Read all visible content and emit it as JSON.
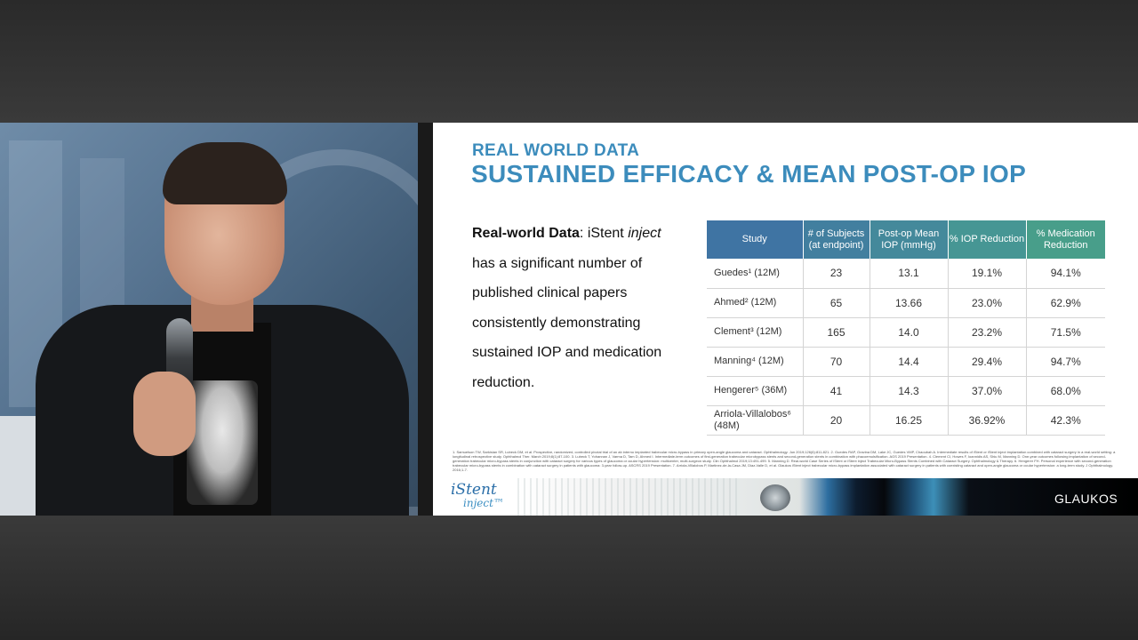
{
  "slide": {
    "kicker": "REAL WORLD DATA",
    "title": "SUSTAINED EFFICACY & MEAN POST-OP IOP",
    "body": {
      "bold_lead": "Real-world Data",
      "after_lead": ": iStent",
      "italic_word": "inject",
      "rest": " has a significant number of published clinical papers consistently demonstrating sustained IOP and medication reduction."
    },
    "table": {
      "headers": [
        "Study",
        "# of Subjects (at endpoint)",
        "Post-op Mean IOP (mmHg)",
        "% IOP Reduction",
        "% Medication Reduction"
      ],
      "rows": [
        [
          "Guedes¹ (12M)",
          "23",
          "13.1",
          "19.1%",
          "94.1%"
        ],
        [
          "Ahmed² (12M)",
          "65",
          "13.66",
          "23.0%",
          "62.9%"
        ],
        [
          "Clement³ (12M)",
          "165",
          "14.0",
          "23.2%",
          "71.5%"
        ],
        [
          "Manning⁴ (12M)",
          "70",
          "14.4",
          "29.4%",
          "94.7%"
        ],
        [
          "Hengerer⁵ (36M)",
          "41",
          "14.3",
          "37.0%",
          "68.0%"
        ],
        [
          "Arriola-Villalobos⁶ (48M)",
          "20",
          "16.25",
          "36.92%",
          "42.3%"
        ]
      ]
    },
    "references": "1. Samuelson TW, Sarkisian SR, Lubeck DM, et al. Prospective, randomized, controlled pivotal trial of an ab interno implanted trabecular micro-bypass in primary open-angle glaucoma and cataract. Ophthalmology. Jun 2019;126(6):811-821. 2. Guedes RAP, Gravina DM, Lake JC, Guedes VMP, Chaoubah A. Intermediate results of iStent or iStent inject implantation combined with cataract surgery in a real-world setting: a longitudinal retrospective study. Ophthalmol Ther. March 2019;8(1):87-100. 3. Lubeck T, Yohannan J, Varma D, Tam D, Ahmed I. Intermediate-term outcomes of first-generation trabecular microbypass stents and second-generation stents in combination with phacoemulsification. AGS 2019 Presentation. 4. Clement CI, Howes F, Ioannidis AS, Shiu M, Manning D. One-year outcomes following implantation of second-generation trabecular micro-bypass stents in conjunction with cataract surgery for various types of glaucoma or ocular hypertension: multicenter, multi-surgeon study. Clin Ophthalmol 2019;13:491-499. 5. Manning D. Real-world Case Series of iStent or iStent inject Trabecular Micro-Bypass Stents Combined with Cataract Surgery. Ophthalmology & Therapy. 6. Hengerer FH. Personal experience with second-generation trabecular micro-bypass stents in combination with cataract surgery in patients with glaucoma: 3-year follow-up. ASCRS 2019 Presentation. 7. Arriola-Villalobos P, Martinez-de-la-Casa JM, Diaz-Valle D, et al. Glaukos iStent inject trabecular micro-bypass implantation associated with cataract surgery in patients with coexisting cataract and open-angle glaucoma or ocular hypertension: a long-term study. J Ophthalmology. 2016;1-7.",
    "footer": {
      "istent_line1": "iStent",
      "istent_line2": "inject",
      "trademark": "™",
      "brand": "GLAUKOS"
    }
  }
}
